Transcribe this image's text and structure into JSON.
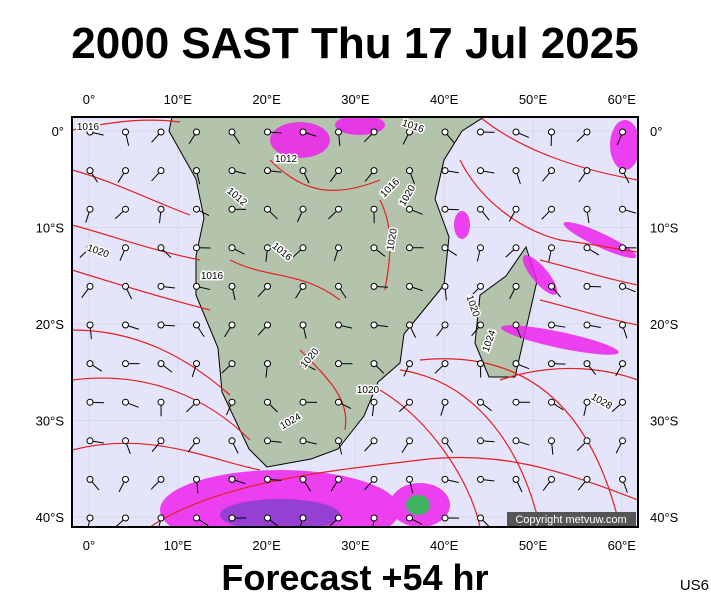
{
  "header": {
    "title": "2000 SAST Thu 17 Jul 2025"
  },
  "footer": {
    "forecast": "Forecast +54 hr",
    "model": "US6"
  },
  "map": {
    "lon_labels": [
      "0°",
      "10°E",
      "20°E",
      "30°E",
      "40°E",
      "50°E",
      "60°E"
    ],
    "lat_labels": [
      "0°",
      "10°S",
      "20°S",
      "30°S",
      "40°S"
    ],
    "isobar_labels": [
      "1016",
      "1012",
      "1012",
      "1016",
      "1020",
      "1016",
      "1020",
      "1016",
      "1020",
      "1020",
      "1024",
      "1020",
      "1020",
      "1024",
      "1028",
      "1016"
    ],
    "copyright": "Copyright metvuw.com"
  }
}
